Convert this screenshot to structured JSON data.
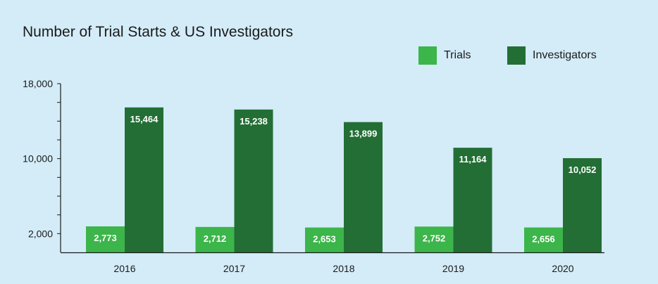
{
  "chart_data": {
    "type": "bar",
    "title": "Number of Trial Starts & US Investigators",
    "xlabel": "",
    "ylabel": "",
    "categories": [
      "2016",
      "2017",
      "2018",
      "2019",
      "2020"
    ],
    "series": [
      {
        "name": "Trials",
        "values": [
          2773,
          2712,
          2653,
          2752,
          2656
        ],
        "color": "#3cb54a"
      },
      {
        "name": "Investigators",
        "values": [
          15464,
          15238,
          13899,
          11164,
          10052
        ],
        "color": "#236e35"
      }
    ],
    "data_labels": [
      [
        "2,773",
        "2,712",
        "2,653",
        "2,752",
        "2,656"
      ],
      [
        "15,464",
        "15,238",
        "13,899",
        "11,164",
        "10,052"
      ]
    ],
    "ylim": [
      0,
      18000
    ],
    "yticks": [
      2000,
      10000,
      18000
    ],
    "ytick_labels": [
      "2,000",
      "10,000",
      "18,000"
    ],
    "legend_position": "top-right",
    "grid": false,
    "background": "#d3ecf8"
  }
}
